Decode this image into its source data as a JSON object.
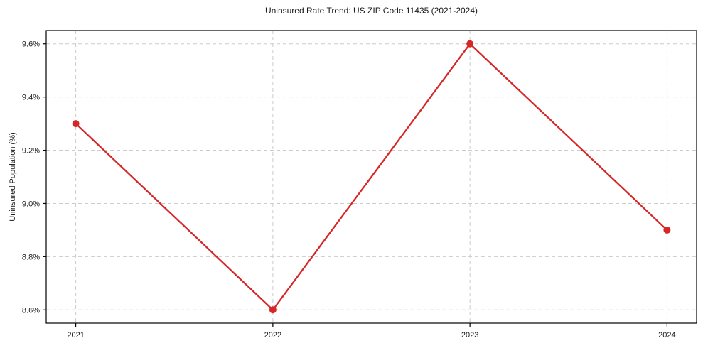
{
  "chart_data": {
    "type": "line",
    "title": "Uninsured Rate Trend: US ZIP Code 11435 (2021-2024)",
    "xlabel": "",
    "ylabel": "Uninsured Population (%)",
    "x": [
      2021,
      2022,
      2023,
      2024
    ],
    "values": [
      9.3,
      8.6,
      9.6,
      8.9
    ],
    "series_name": "uninsured-rate",
    "xlim": [
      2020.85,
      2024.15
    ],
    "ylim": [
      8.55,
      9.65
    ],
    "xticks": [
      {
        "value": 2021,
        "label": "2021"
      },
      {
        "value": 2022,
        "label": "2022"
      },
      {
        "value": 2023,
        "label": "2023"
      },
      {
        "value": 2024,
        "label": "2024"
      }
    ],
    "yticks": [
      {
        "value": 8.6,
        "label": "8.6%"
      },
      {
        "value": 8.8,
        "label": "8.8%"
      },
      {
        "value": 9.0,
        "label": "9.0%"
      },
      {
        "value": 9.2,
        "label": "9.2%"
      },
      {
        "value": 9.4,
        "label": "9.4%"
      },
      {
        "value": 9.6,
        "label": "9.6%"
      }
    ],
    "grid": "dashed",
    "legend_position": "none",
    "line_color": "#d62728",
    "marker": "circle",
    "grid_color": "#cccccc",
    "spine_color": "#000000",
    "text_color": "#1a1a1a"
  }
}
